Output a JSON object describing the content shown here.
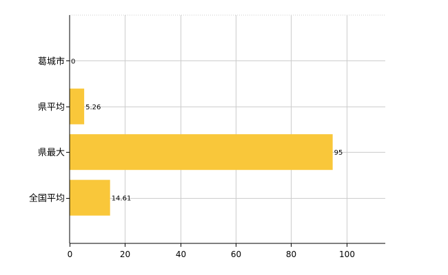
{
  "chart_data": {
    "type": "bar",
    "orientation": "horizontal",
    "categories": [
      "葛城市",
      "県平均",
      "県最大",
      "全国平均"
    ],
    "values": [
      0,
      5.26,
      95,
      14.61
    ],
    "data_labels": [
      "0",
      "5.26",
      "95",
      "14.61"
    ],
    "xlim": [
      0,
      114
    ],
    "x_ticks": [
      0,
      20,
      40,
      60,
      80,
      100
    ],
    "x_tick_labels": [
      "0",
      "20",
      "40",
      "60",
      "80",
      "100"
    ],
    "grid": true,
    "bar_color": "#f9c73a",
    "title": "",
    "xlabel": "",
    "ylabel": ""
  }
}
